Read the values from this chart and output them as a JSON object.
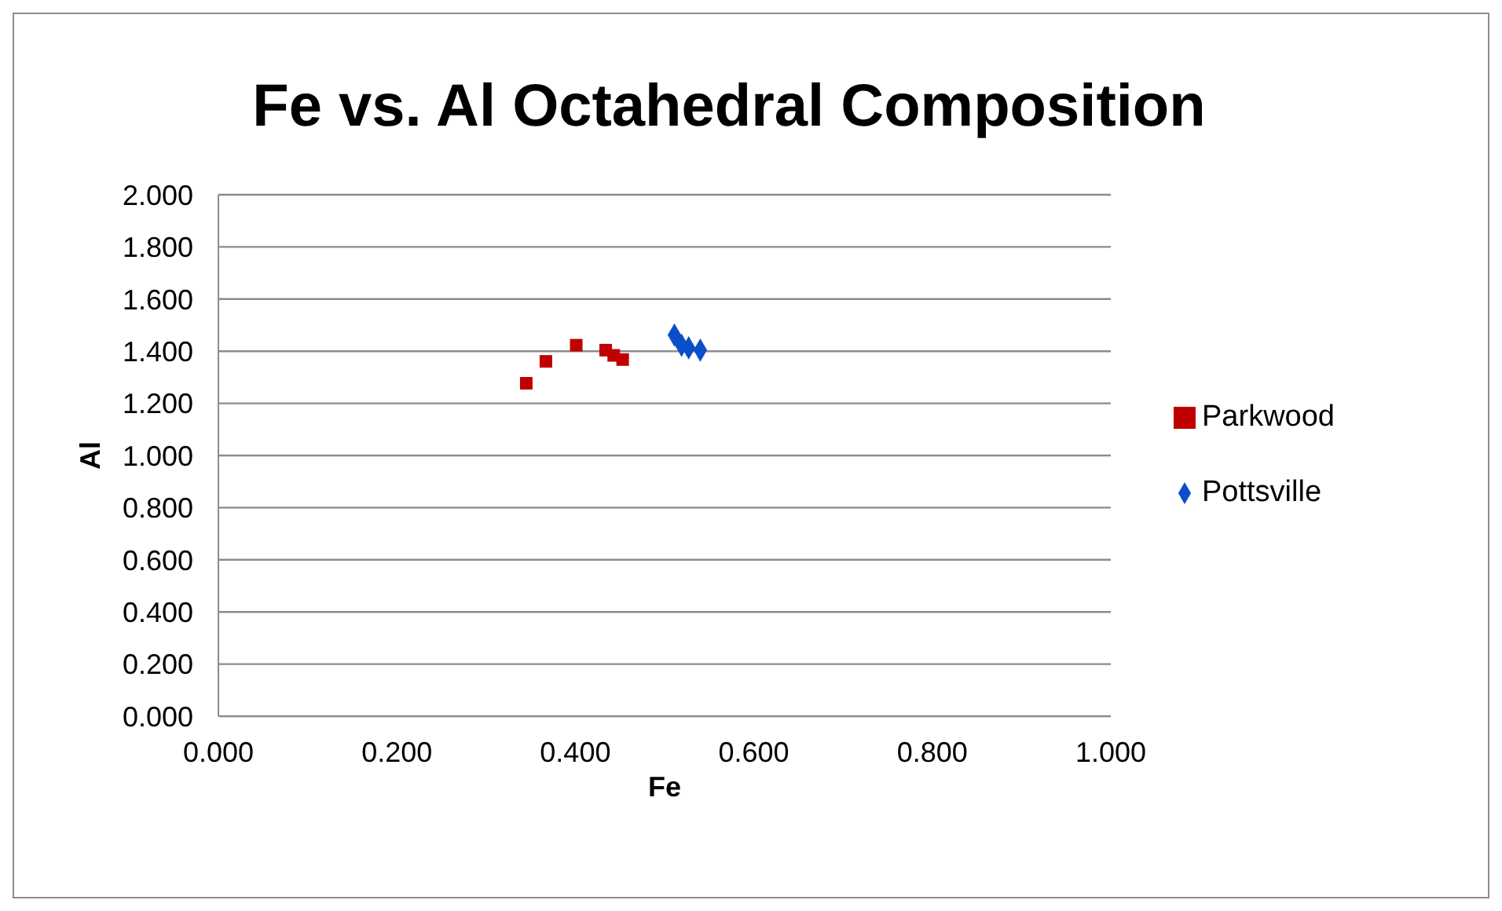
{
  "chart_data": {
    "type": "scatter",
    "title": "Fe vs. Al Octahedral Composition",
    "xlabel": "Fe",
    "ylabel": "Al",
    "series": [
      {
        "name": "Pottsville",
        "color": "#0a4fc8",
        "marker": "diamond",
        "x": [
          0.511,
          0.519,
          0.527,
          0.54
        ],
        "values": [
          1.462,
          1.423,
          1.413,
          1.404
        ]
      },
      {
        "name": "Parkwood",
        "color": "#c00000",
        "marker": "square",
        "x": [
          0.345,
          0.367,
          0.401,
          0.434,
          0.443,
          0.453
        ],
        "values": [
          1.277,
          1.361,
          1.423,
          1.404,
          1.384,
          1.368
        ]
      }
    ],
    "xlim": [
      0,
      1
    ],
    "xticks": [
      {
        "value": 0,
        "label": "0.000"
      },
      {
        "value": 0.2,
        "label": "0.200"
      },
      {
        "value": 0.4,
        "label": "0.400"
      },
      {
        "value": 0.6,
        "label": "0.600"
      },
      {
        "value": 0.8,
        "label": "0.800"
      },
      {
        "value": 1,
        "label": "1.000"
      }
    ],
    "ylim": [
      0,
      2
    ],
    "yticks": [
      {
        "value": 0,
        "label": "0.000"
      },
      {
        "value": 0.2,
        "label": "0.200"
      },
      {
        "value": 0.4,
        "label": "0.400"
      },
      {
        "value": 0.6,
        "label": "0.600"
      },
      {
        "value": 0.8,
        "label": "0.800"
      },
      {
        "value": 1,
        "label": "1.000"
      },
      {
        "value": 1.2,
        "label": "1.200"
      },
      {
        "value": 1.4,
        "label": "1.400"
      },
      {
        "value": 1.6,
        "label": "1.600"
      },
      {
        "value": 1.8,
        "label": "1.800"
      },
      {
        "value": 2,
        "label": "2.000"
      }
    ],
    "grid": "y",
    "legend": "right"
  }
}
